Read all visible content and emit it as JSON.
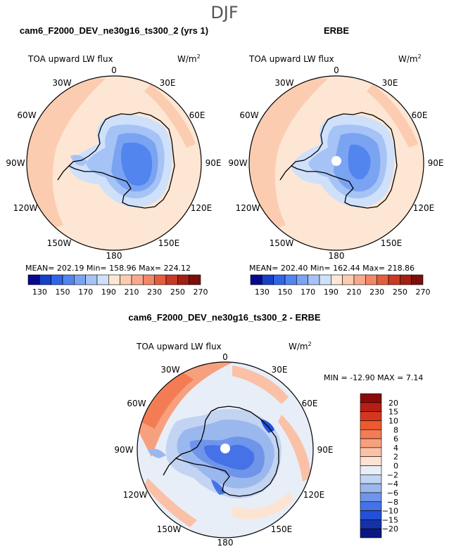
{
  "page": {
    "season": "DJF"
  },
  "panels": [
    {
      "title": "cam6_F2000_DEV_ne30g16_ts300_2 (yrs 1)",
      "variable": "TOA upward LW flux",
      "units_base": "W/m",
      "units_exp": "2",
      "stats": "MEAN= 202.19   Min= 158.96   Max= 224.12"
    },
    {
      "title": "ERBE",
      "variable": "TOA upward LW flux",
      "units_base": "W/m",
      "units_exp": "2",
      "stats": "MEAN= 202.40   Min= 162.44   Max= 218.86"
    },
    {
      "title": "cam6_F2000_DEV_ne30g16_ts300_2 - ERBE",
      "variable": "TOA upward LW flux",
      "units_base": "W/m",
      "units_exp": "2",
      "stats": "MIN = -12.90  MAX =    7.14"
    }
  ],
  "chart_data": [
    {
      "type": "heatmap",
      "projection": "south-polar-stereographic",
      "title": "cam6_F2000_DEV_ne30g16_ts300_2 (yrs 1)",
      "variable": "TOA upward LW flux",
      "units": "W/m2",
      "longitude_labels": [
        "0",
        "30E",
        "60E",
        "90E",
        "120E",
        "150E",
        "180",
        "150W",
        "120W",
        "90W",
        "60W",
        "30W"
      ],
      "colorbar_levels": [
        130,
        150,
        170,
        190,
        210,
        230,
        250,
        270
      ],
      "colorbar_colors": [
        "#08088f",
        "#1540c8",
        "#2e66e6",
        "#5285ee",
        "#7aa3f2",
        "#a6c3f6",
        "#cfe0fb",
        "#fde6d3",
        "#fcccb1",
        "#f8a98d",
        "#f28767",
        "#e35e3d",
        "#c83a22",
        "#a21f12",
        "#7b0f0b"
      ],
      "mean": 202.19,
      "min": 158.96,
      "max": 224.12
    },
    {
      "type": "heatmap",
      "projection": "south-polar-stereographic",
      "title": "ERBE",
      "variable": "TOA upward LW flux",
      "units": "W/m2",
      "longitude_labels": [
        "0",
        "30E",
        "60E",
        "90E",
        "120E",
        "150E",
        "180",
        "150W",
        "120W",
        "90W",
        "60W",
        "30W"
      ],
      "colorbar_levels": [
        130,
        150,
        170,
        190,
        210,
        230,
        250,
        270
      ],
      "mean": 202.4,
      "min": 162.44,
      "max": 218.86
    },
    {
      "type": "heatmap",
      "projection": "south-polar-stereographic",
      "title": "cam6_F2000_DEV_ne30g16_ts300_2 - ERBE",
      "variable": "TOA upward LW flux",
      "units": "W/m2",
      "longitude_labels": [
        "0",
        "30E",
        "60E",
        "90E",
        "120E",
        "150E",
        "180",
        "150W",
        "120W",
        "90W",
        "60W",
        "30W"
      ],
      "colorbar_levels": [
        20,
        15,
        10,
        8,
        6,
        4,
        2,
        0,
        -2,
        -4,
        -6,
        -8,
        -10,
        -15,
        -20
      ],
      "colorbar_colors": [
        "#8b0a0a",
        "#b51f14",
        "#d6361e",
        "#ee5a2e",
        "#f47c54",
        "#f7a07e",
        "#fac1a6",
        "#fde3d2",
        "#e8eef8",
        "#c2d4f2",
        "#9bb8ee",
        "#6f95ea",
        "#4572e6",
        "#2350d8",
        "#1632a8",
        "#0a1880"
      ],
      "min": -12.9,
      "max": 7.14
    }
  ]
}
